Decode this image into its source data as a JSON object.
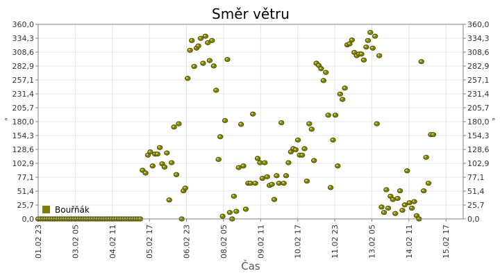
{
  "chart_data": {
    "type": "scatter",
    "title": "Směr větru",
    "xlabel": "Čas",
    "ylabel": "°",
    "ylim": [
      0,
      360
    ],
    "xlim": [
      0,
      14.33
    ],
    "y_ticks": [
      "0,0",
      "25,7",
      "51,4",
      "77,1",
      "102,9",
      "128,6",
      "154,3",
      "180,0",
      "205,7",
      "231,4",
      "257,1",
      "282,9",
      "308,6",
      "334,3",
      "360,0"
    ],
    "x_ticks": [
      {
        "label": "01.02 23",
        "x": 0
      },
      {
        "label": "03.02 05",
        "x": 1.25
      },
      {
        "label": "04.02 11",
        "x": 2.5
      },
      {
        "label": "05.02 17",
        "x": 3.75
      },
      {
        "label": "06.02 23",
        "x": 5.0
      },
      {
        "label": "08.02 05",
        "x": 6.25
      },
      {
        "label": "09.02 11",
        "x": 7.5
      },
      {
        "label": "10.02 17",
        "x": 8.75
      },
      {
        "label": "11.02 23",
        "x": 10.0
      },
      {
        "label": "13.02 05",
        "x": 11.25
      },
      {
        "label": "14.02 11",
        "x": 12.5
      },
      {
        "label": "15.02 17",
        "x": 13.75
      }
    ],
    "grid": true,
    "legend_position": "bottom-left",
    "series": [
      {
        "name": "Bouřňák",
        "color": "#808000",
        "points": [
          [
            0.0,
            0
          ],
          [
            0.08,
            0
          ],
          [
            0.16,
            0
          ],
          [
            0.24,
            0
          ],
          [
            0.32,
            0
          ],
          [
            0.4,
            0
          ],
          [
            0.48,
            0
          ],
          [
            0.56,
            0
          ],
          [
            0.64,
            0
          ],
          [
            0.72,
            0
          ],
          [
            0.8,
            0
          ],
          [
            0.88,
            0
          ],
          [
            0.96,
            0
          ],
          [
            1.04,
            0
          ],
          [
            1.12,
            0
          ],
          [
            1.2,
            0
          ],
          [
            1.28,
            0
          ],
          [
            1.36,
            0
          ],
          [
            1.44,
            0
          ],
          [
            1.52,
            0
          ],
          [
            1.6,
            0
          ],
          [
            1.68,
            0
          ],
          [
            1.76,
            0
          ],
          [
            1.84,
            0
          ],
          [
            1.92,
            0
          ],
          [
            2.0,
            0
          ],
          [
            2.08,
            0
          ],
          [
            2.16,
            0
          ],
          [
            2.24,
            0
          ],
          [
            2.32,
            0
          ],
          [
            2.4,
            0
          ],
          [
            2.48,
            0
          ],
          [
            2.56,
            0
          ],
          [
            2.64,
            0
          ],
          [
            2.72,
            0
          ],
          [
            2.8,
            0
          ],
          [
            2.88,
            0
          ],
          [
            2.96,
            0
          ],
          [
            3.04,
            0
          ],
          [
            3.12,
            0
          ],
          [
            3.2,
            0
          ],
          [
            3.28,
            0
          ],
          [
            3.36,
            0
          ],
          [
            3.44,
            0
          ],
          [
            3.52,
            90
          ],
          [
            3.62,
            85
          ],
          [
            3.7,
            118
          ],
          [
            3.78,
            124
          ],
          [
            3.86,
            98
          ],
          [
            3.94,
            120
          ],
          [
            4.02,
            120
          ],
          [
            4.1,
            132
          ],
          [
            4.18,
            102
          ],
          [
            4.26,
            96
          ],
          [
            4.34,
            122
          ],
          [
            4.42,
            35
          ],
          [
            4.5,
            104
          ],
          [
            4.58,
            170
          ],
          [
            4.66,
            82
          ],
          [
            4.74,
            176
          ],
          [
            4.84,
            0
          ],
          [
            4.9,
            52
          ],
          [
            4.96,
            57
          ],
          [
            5.04,
            260
          ],
          [
            5.12,
            312
          ],
          [
            5.18,
            330
          ],
          [
            5.26,
            282
          ],
          [
            5.34,
            316
          ],
          [
            5.4,
            320
          ],
          [
            5.48,
            334
          ],
          [
            5.56,
            288
          ],
          [
            5.64,
            338
          ],
          [
            5.72,
            326
          ],
          [
            5.78,
            293
          ],
          [
            5.86,
            330
          ],
          [
            5.92,
            283
          ],
          [
            6.0,
            238
          ],
          [
            6.08,
            110
          ],
          [
            6.14,
            152
          ],
          [
            6.22,
            5
          ],
          [
            6.3,
            182
          ],
          [
            6.38,
            295
          ],
          [
            6.46,
            12
          ],
          [
            6.54,
            0
          ],
          [
            6.6,
            42
          ],
          [
            6.68,
            14
          ],
          [
            6.76,
            95
          ],
          [
            6.84,
            175
          ],
          [
            6.92,
            98
          ],
          [
            7.0,
            18
          ],
          [
            7.08,
            66
          ],
          [
            7.16,
            66
          ],
          [
            7.24,
            194
          ],
          [
            7.32,
            66
          ],
          [
            7.4,
            112
          ],
          [
            7.48,
            104
          ],
          [
            7.56,
            75
          ],
          [
            7.64,
            104
          ],
          [
            7.72,
            78
          ],
          [
            7.8,
            62
          ],
          [
            7.88,
            64
          ],
          [
            7.96,
            36
          ],
          [
            8.04,
            80
          ],
          [
            8.12,
            66
          ],
          [
            8.2,
            178
          ],
          [
            8.28,
            66
          ],
          [
            8.36,
            80
          ],
          [
            8.44,
            104
          ],
          [
            8.52,
            124
          ],
          [
            8.6,
            130
          ],
          [
            8.68,
            128
          ],
          [
            8.76,
            146
          ],
          [
            8.82,
            118
          ],
          [
            8.9,
            118
          ],
          [
            8.98,
            130
          ],
          [
            9.06,
            70
          ],
          [
            9.14,
            176
          ],
          [
            9.22,
            166
          ],
          [
            9.3,
            108
          ],
          [
            9.38,
            288
          ],
          [
            9.46,
            284
          ],
          [
            9.54,
            278
          ],
          [
            9.62,
            256
          ],
          [
            9.7,
            271
          ],
          [
            9.78,
            192
          ],
          [
            9.86,
            58
          ],
          [
            9.94,
            146
          ],
          [
            10.02,
            192
          ],
          [
            10.1,
            98
          ],
          [
            10.18,
            231
          ],
          [
            10.26,
            221
          ],
          [
            10.34,
            242
          ],
          [
            10.42,
            322
          ],
          [
            10.5,
            324
          ],
          [
            10.58,
            331
          ],
          [
            10.66,
            308
          ],
          [
            10.74,
            302
          ],
          [
            10.82,
            305
          ],
          [
            10.9,
            305
          ],
          [
            10.98,
            294
          ],
          [
            11.06,
            318
          ],
          [
            11.12,
            330
          ],
          [
            11.2,
            345
          ],
          [
            11.28,
            316
          ],
          [
            11.36,
            338
          ],
          [
            11.42,
            176
          ],
          [
            11.5,
            302
          ],
          [
            11.58,
            22
          ],
          [
            11.66,
            12
          ],
          [
            11.74,
            54
          ],
          [
            11.8,
            20
          ],
          [
            11.88,
            42
          ],
          [
            11.96,
            36
          ],
          [
            12.04,
            10
          ],
          [
            12.12,
            38
          ],
          [
            12.2,
            52
          ],
          [
            12.28,
            16
          ],
          [
            12.36,
            26
          ],
          [
            12.44,
            89
          ],
          [
            12.52,
            30
          ],
          [
            12.6,
            20
          ],
          [
            12.68,
            32
          ],
          [
            12.76,
            6
          ],
          [
            12.84,
            0
          ],
          [
            12.92,
            291
          ],
          [
            13.0,
            52
          ],
          [
            13.08,
            114
          ],
          [
            13.16,
            66
          ],
          [
            13.24,
            156
          ],
          [
            13.32,
            156
          ]
        ]
      }
    ]
  }
}
